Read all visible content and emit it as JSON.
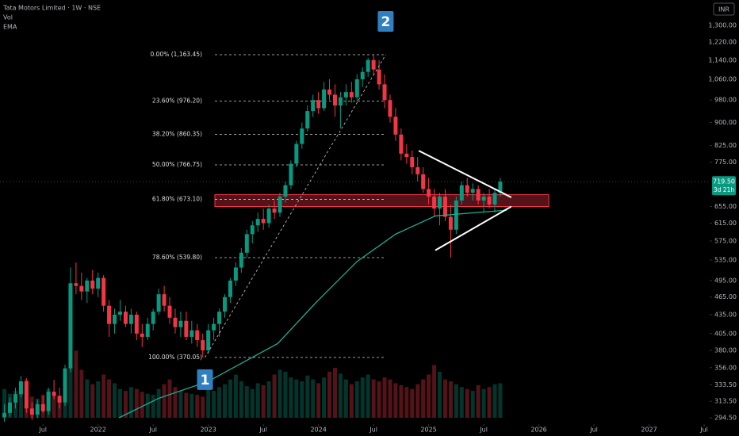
{
  "chart_data": {
    "type": "candlestick",
    "title": "Tata Motors Limited · 1W · NSE",
    "indicators": [
      "Vol",
      "EMA"
    ],
    "currency": "INR",
    "up_color": "#089981",
    "down_color": "#f23645",
    "log_scale": true,
    "xlim": [
      2021.11,
      2027.55
    ],
    "ylim": [
      287.5,
      1431
    ],
    "xticks": [
      {
        "value": 2021.5,
        "label": "Jul"
      },
      2022,
      {
        "value": 2022.5,
        "label": "Jul"
      },
      2023,
      {
        "value": 2023.5,
        "label": "Jul"
      },
      2024,
      {
        "value": 2024.5,
        "label": "Jul"
      },
      2025,
      {
        "value": 2025.5,
        "label": "Jul"
      },
      2026,
      {
        "value": 2026.5,
        "label": "Jul"
      },
      2027,
      {
        "value": 2027.5,
        "label": "Jul"
      }
    ],
    "yticks": [
      {
        "value": 1300,
        "label": "1,300.00"
      },
      {
        "value": 1220,
        "label": "1,220.00"
      },
      {
        "value": 1140,
        "label": "1,140.00"
      },
      {
        "value": 1060,
        "label": "1,060.00"
      },
      {
        "value": 980,
        "label": "980.00"
      },
      {
        "value": 900,
        "label": "900.00"
      },
      {
        "value": 825,
        "label": "825.00"
      },
      {
        "value": 775,
        "label": "775.00"
      },
      {
        "value": 655,
        "label": "655.00"
      },
      {
        "value": 615,
        "label": "615.00"
      },
      {
        "value": 575,
        "label": "575.00"
      },
      {
        "value": 535,
        "label": "535.00"
      },
      {
        "value": 495,
        "label": "495.00"
      },
      {
        "value": 465,
        "label": "465.00"
      },
      {
        "value": 435,
        "label": "435.00"
      },
      {
        "value": 405,
        "label": "405.00"
      },
      {
        "value": 380,
        "label": "380.00"
      },
      {
        "value": 356,
        "label": "356.00"
      },
      {
        "value": 333.5,
        "label": "333.50"
      },
      {
        "value": 313.5,
        "label": "313.50"
      },
      {
        "value": 294.5,
        "label": "294.50"
      }
    ],
    "last_price": {
      "value": 719.5,
      "label": "719.50"
    },
    "countdown": "3d 21h",
    "x": [
      2021.15,
      2021.2,
      2021.25,
      2021.3,
      2021.35,
      2021.4,
      2021.45,
      2021.5,
      2021.55,
      2021.6,
      2021.65,
      2021.7,
      2021.75,
      2021.8,
      2021.85,
      2021.9,
      2021.95,
      2022.0,
      2022.05,
      2022.1,
      2022.15,
      2022.2,
      2022.25,
      2022.3,
      2022.35,
      2022.4,
      2022.45,
      2022.5,
      2022.55,
      2022.6,
      2022.65,
      2022.7,
      2022.75,
      2022.8,
      2022.85,
      2022.9,
      2022.95,
      2023.0,
      2023.05,
      2023.1,
      2023.15,
      2023.2,
      2023.25,
      2023.3,
      2023.35,
      2023.4,
      2023.45,
      2023.5,
      2023.55,
      2023.6,
      2023.65,
      2023.7,
      2023.75,
      2023.8,
      2023.85,
      2023.9,
      2023.95,
      2024.0,
      2024.05,
      2024.1,
      2024.15,
      2024.2,
      2024.25,
      2024.3,
      2024.35,
      2024.4,
      2024.45,
      2024.5,
      2024.55,
      2024.6,
      2024.65,
      2024.7,
      2024.75,
      2024.8,
      2024.85,
      2024.9,
      2024.95,
      2025.0,
      2025.05,
      2025.1,
      2025.15,
      2025.2,
      2025.25,
      2025.3,
      2025.35,
      2025.4,
      2025.45,
      2025.5,
      2025.55,
      2025.6,
      2025.65
    ],
    "ohlc": [
      [
        295,
        310,
        290,
        300
      ],
      [
        300,
        318,
        296,
        312
      ],
      [
        312,
        330,
        305,
        322
      ],
      [
        322,
        345,
        318,
        338
      ],
      [
        338,
        342,
        300,
        305
      ],
      [
        305,
        312,
        292,
        298
      ],
      [
        298,
        315,
        294,
        310
      ],
      [
        310,
        320,
        300,
        302
      ],
      [
        302,
        330,
        298,
        325
      ],
      [
        325,
        340,
        316,
        320
      ],
      [
        320,
        330,
        305,
        312
      ],
      [
        312,
        360,
        308,
        355
      ],
      [
        355,
        520,
        350,
        490
      ],
      [
        490,
        530,
        470,
        485
      ],
      [
        485,
        510,
        460,
        475
      ],
      [
        475,
        500,
        455,
        495
      ],
      [
        495,
        515,
        470,
        480
      ],
      [
        480,
        510,
        465,
        500
      ],
      [
        500,
        505,
        440,
        450
      ],
      [
        450,
        460,
        400,
        420
      ],
      [
        420,
        445,
        405,
        435
      ],
      [
        435,
        460,
        425,
        440
      ],
      [
        440,
        450,
        415,
        420
      ],
      [
        420,
        445,
        405,
        435
      ],
      [
        435,
        440,
        395,
        405
      ],
      [
        405,
        420,
        385,
        400
      ],
      [
        400,
        430,
        395,
        420
      ],
      [
        420,
        445,
        410,
        440
      ],
      [
        440,
        480,
        435,
        470
      ],
      [
        470,
        485,
        440,
        450
      ],
      [
        450,
        465,
        420,
        430
      ],
      [
        430,
        445,
        405,
        415
      ],
      [
        415,
        440,
        400,
        425
      ],
      [
        425,
        440,
        395,
        400
      ],
      [
        400,
        425,
        390,
        410
      ],
      [
        410,
        420,
        385,
        395
      ],
      [
        395,
        405,
        370,
        380
      ],
      [
        380,
        420,
        375,
        410
      ],
      [
        410,
        430,
        395,
        420
      ],
      [
        420,
        445,
        400,
        440
      ],
      [
        440,
        470,
        430,
        465
      ],
      [
        465,
        500,
        455,
        495
      ],
      [
        495,
        530,
        485,
        520
      ],
      [
        520,
        560,
        510,
        550
      ],
      [
        550,
        600,
        540,
        590
      ],
      [
        590,
        620,
        570,
        610
      ],
      [
        610,
        640,
        595,
        625
      ],
      [
        625,
        650,
        600,
        615
      ],
      [
        615,
        660,
        605,
        650
      ],
      [
        650,
        670,
        625,
        640
      ],
      [
        640,
        690,
        630,
        680
      ],
      [
        680,
        720,
        665,
        710
      ],
      [
        710,
        780,
        700,
        770
      ],
      [
        770,
        840,
        760,
        830
      ],
      [
        830,
        900,
        815,
        880
      ],
      [
        880,
        960,
        870,
        940
      ],
      [
        940,
        1000,
        920,
        980
      ],
      [
        980,
        1010,
        930,
        950
      ],
      [
        950,
        1050,
        940,
        1020
      ],
      [
        1020,
        1060,
        980,
        1000
      ],
      [
        1000,
        1040,
        920,
        960
      ],
      [
        960,
        1010,
        880,
        990
      ],
      [
        990,
        1040,
        960,
        1010
      ],
      [
        1010,
        1050,
        970,
        990
      ],
      [
        990,
        1080,
        975,
        1060
      ],
      [
        1060,
        1110,
        1030,
        1090
      ],
      [
        1090,
        1150,
        1070,
        1140
      ],
      [
        1140,
        1163,
        1080,
        1100
      ],
      [
        1100,
        1140,
        1020,
        1040
      ],
      [
        1040,
        1080,
        950,
        980
      ],
      [
        980,
        1000,
        900,
        920
      ],
      [
        920,
        950,
        840,
        860
      ],
      [
        860,
        880,
        780,
        800
      ],
      [
        800,
        830,
        770,
        790
      ],
      [
        790,
        810,
        740,
        760
      ],
      [
        760,
        790,
        720,
        740
      ],
      [
        740,
        760,
        690,
        700
      ],
      [
        700,
        730,
        660,
        680
      ],
      [
        680,
        700,
        630,
        650
      ],
      [
        650,
        690,
        610,
        680
      ],
      [
        680,
        700,
        620,
        630
      ],
      [
        630,
        660,
        540,
        600
      ],
      [
        600,
        680,
        590,
        670
      ],
      [
        670,
        720,
        660,
        710
      ],
      [
        710,
        730,
        680,
        690
      ],
      [
        690,
        715,
        670,
        700
      ],
      [
        700,
        710,
        660,
        670
      ],
      [
        670,
        690,
        640,
        680
      ],
      [
        680,
        700,
        650,
        660
      ],
      [
        660,
        700,
        640,
        690
      ],
      [
        690,
        730,
        680,
        719.5
      ]
    ],
    "volume": [
      30,
      25,
      28,
      35,
      40,
      22,
      20,
      24,
      30,
      26,
      22,
      35,
      95,
      70,
      50,
      40,
      35,
      38,
      45,
      40,
      36,
      30,
      28,
      32,
      30,
      27,
      25,
      24,
      30,
      35,
      40,
      32,
      28,
      26,
      25,
      24,
      22,
      30,
      28,
      32,
      35,
      40,
      45,
      38,
      33,
      30,
      36,
      34,
      38,
      45,
      50,
      48,
      42,
      40,
      38,
      44,
      40,
      36,
      42,
      48,
      52,
      46,
      40,
      35,
      38,
      42,
      45,
      40,
      38,
      42,
      40,
      36,
      34,
      32,
      30,
      35,
      40,
      45,
      55,
      48,
      40,
      38,
      35,
      32,
      30,
      28,
      34,
      30,
      32,
      35,
      36
    ],
    "ema": {
      "color": "#22ab94",
      "x": [
        2022.19,
        2022.55,
        2023.0,
        2023.63,
        2023.99,
        2024.35,
        2024.7,
        2025.06,
        2025.42,
        2025.71
      ],
      "values": [
        294.5,
        317,
        338,
        390,
        458,
        532,
        590,
        632,
        640,
        646
      ]
    },
    "fib_levels": [
      {
        "value": 1163.45,
        "label": "0.00% (1,163.45)"
      },
      {
        "value": 976.2,
        "label": "23.60% (976.20)"
      },
      {
        "value": 860.35,
        "label": "38.20% (860.35)"
      },
      {
        "value": 766.75,
        "label": "50.00% (766.75)"
      },
      {
        "value": 673.1,
        "label": "61.80% (673.10)"
      },
      {
        "value": 539.8,
        "label": "78.60% (539.80)"
      },
      {
        "value": 370.05,
        "label": "100.00% (370.05)"
      }
    ],
    "fib_x": [
      2023.06,
      2024.61
    ],
    "zone": {
      "x": [
        2023.06,
        2026.09
      ],
      "y": [
        655,
        685
      ],
      "color": "#f23645"
    },
    "trendlines": [
      {
        "x": [
          2022.97,
          2024.61
        ],
        "y": [
          370.05,
          1163.45
        ],
        "dash": true
      },
      {
        "x": [
          2024.91,
          2025.75
        ],
        "y": [
          809,
          678
        ],
        "dash": false
      },
      {
        "x": [
          2025.06,
          2025.75
        ],
        "y": [
          555,
          655
        ],
        "dash": false
      }
    ],
    "markers": [
      {
        "label": "1",
        "x": 2022.97,
        "y": 370.05,
        "position": "below"
      },
      {
        "label": "2",
        "x": 2024.61,
        "y": 1163.45,
        "position": "above"
      }
    ]
  }
}
